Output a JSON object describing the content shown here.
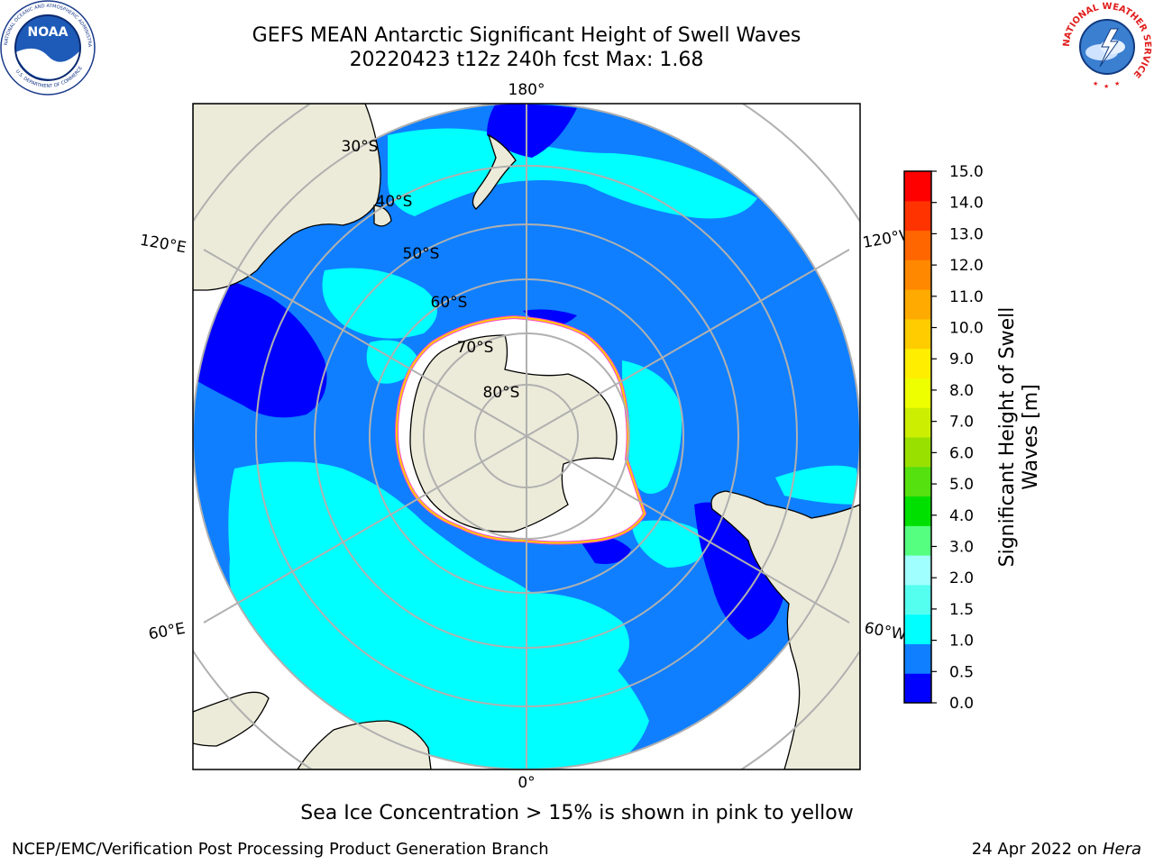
{
  "title_line1": "GEFS MEAN Antarctic Significant Height of Swell Waves",
  "title_line2": "20220423 t12z 240h fcst   Max: 1.68",
  "caption": "Sea Ice Concentration > 15% is shown in pink to yellow",
  "footer": {
    "left": "NCEP/EMC/Verification Post Processing Product Generation Branch",
    "right_prefix": "24 Apr 2022 on ",
    "right_host": "Hera"
  },
  "logos": {
    "noaa": {
      "text": "NOAA",
      "ring_text": "NATIONAL OCEANIC AND ATMOSPHERIC ADMINISTRATION",
      "bottom_text": "U.S. DEPARTMENT OF COMMERCE"
    },
    "nws": {
      "ring_text": "NATIONAL WEATHER SERVICE"
    }
  },
  "map": {
    "projection": "south polar stereographic",
    "longitude_labels": [
      "180°",
      "120°E",
      "120°W",
      "60°E",
      "60°W",
      "0°"
    ],
    "latitude_labels": [
      "30°S",
      "40°S",
      "50°S",
      "60°S",
      "70°S",
      "80°S"
    ],
    "land_color": "#ecebd9",
    "ocean_colors": {
      "0.0-0.5": "#0000ff",
      "0.5-1.0": "#0f7fff",
      "1.0-1.5": "#00ffff"
    }
  },
  "colorbar": {
    "label_line1": "Significant Height of Swell",
    "label_line2": "Waves [m]",
    "ticks": [
      "0.0",
      "0.5",
      "1.0",
      "1.5",
      "2.0",
      "3.0",
      "4.0",
      "5.0",
      "6.0",
      "7.0",
      "8.0",
      "9.0",
      "10.0",
      "11.0",
      "12.0",
      "13.0",
      "14.0",
      "15.0"
    ],
    "colors": [
      "#0000ff",
      "#0f7fff",
      "#00ffff",
      "#55fff0",
      "#a0ffff",
      "#55ff80",
      "#00e000",
      "#55e010",
      "#99e000",
      "#ccee00",
      "#eeff00",
      "#ffee00",
      "#ffcc00",
      "#ffaa00",
      "#ff8800",
      "#ff6600",
      "#ff3300",
      "#ff0000"
    ]
  }
}
